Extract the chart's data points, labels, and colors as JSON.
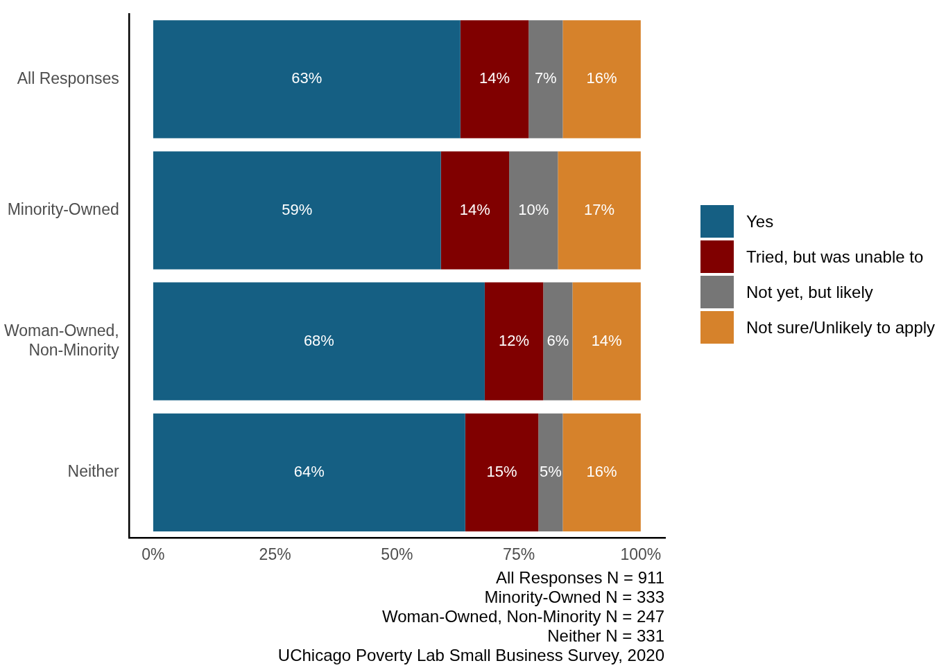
{
  "chart_data": {
    "type": "bar",
    "orientation": "horizontal",
    "stacked": true,
    "grid": false,
    "legend": "right",
    "categories": [
      "All Responses",
      "Minority-Owned",
      "Woman-Owned, Non-Minority",
      "Neither"
    ],
    "series": [
      {
        "name": "Yes",
        "color": "#155f83",
        "values": [
          63,
          59,
          68,
          64
        ],
        "value_labels": [
          "63%",
          "59%",
          "68%",
          "64%"
        ]
      },
      {
        "name": "Tried, but was unable to",
        "color": "#800000",
        "values": [
          14,
          14,
          12,
          15
        ],
        "value_labels": [
          "14%",
          "14%",
          "12%",
          "15%"
        ]
      },
      {
        "name": "Not yet, but likely",
        "color": "#767676",
        "values": [
          7,
          10,
          6,
          5
        ],
        "value_labels": [
          "7%",
          "10%",
          "6%",
          "5%"
        ]
      },
      {
        "name": "Not sure/Unlikely to apply",
        "color": "#d6822b",
        "values": [
          16,
          17,
          14,
          16
        ],
        "value_labels": [
          "16%",
          "17%",
          "14%",
          "16%"
        ]
      }
    ],
    "xlim": [
      -5,
      105
    ],
    "xticks": [
      {
        "value": 0,
        "label": "0%"
      },
      {
        "value": 25,
        "label": "25%"
      },
      {
        "value": 50,
        "label": "50%"
      },
      {
        "value": 75,
        "label": "75%"
      },
      {
        "value": 100,
        "label": "100%"
      }
    ],
    "annotations": [
      "All Responses N = 911",
      "Minority-Owned N = 333",
      "Woman-Owned, Non-Minority N = 247",
      "Neither N = 331",
      "UChicago Poverty Lab Small Business Survey, 2020"
    ]
  }
}
